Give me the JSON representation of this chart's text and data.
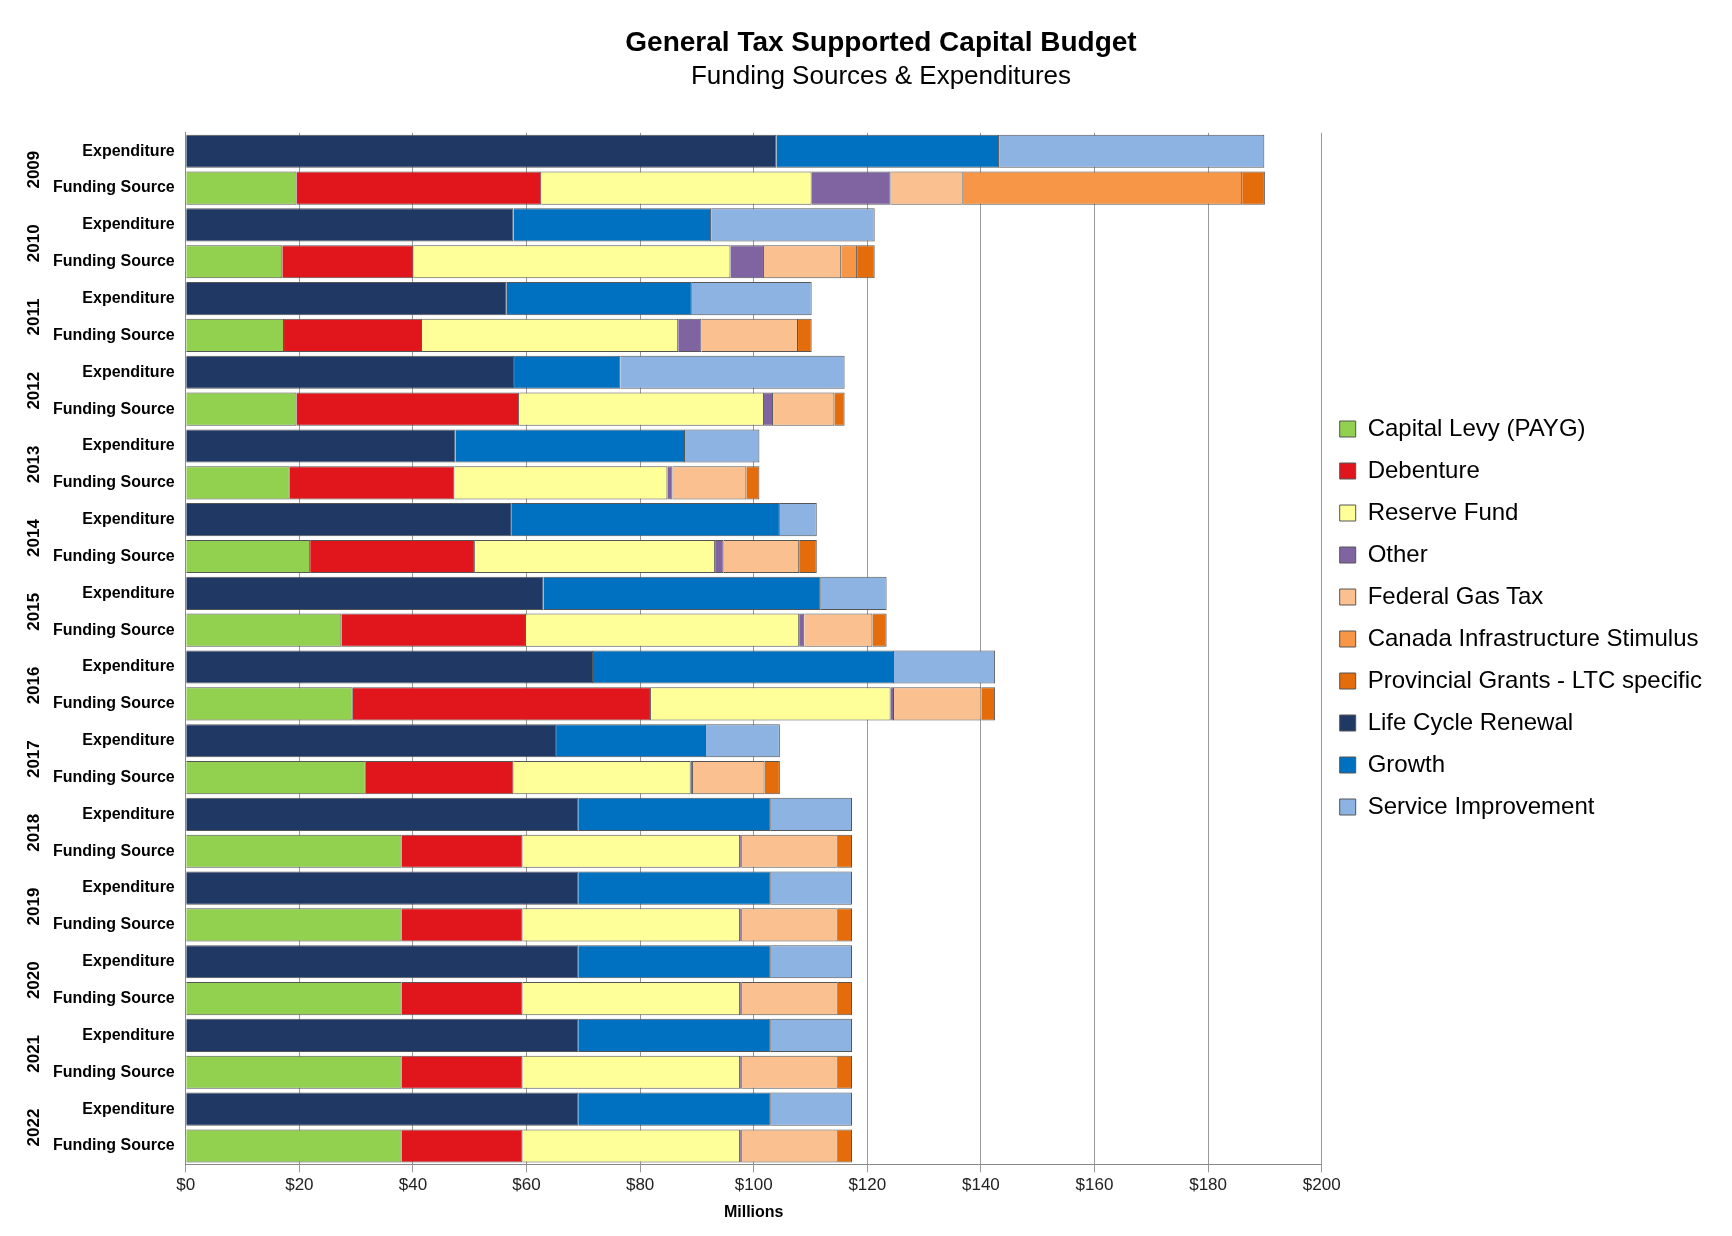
{
  "chart_data": {
    "type": "bar",
    "orientation": "horizontal",
    "stacked": true,
    "title": "General Tax Supported Capital Budget",
    "subtitle": "Funding Sources & Expenditures",
    "xlabel": "Millions",
    "categories": [
      "Expenditure",
      "Funding Source",
      "Expenditure",
      "Funding Source",
      "Expenditure",
      "Funding Source",
      "Expenditure",
      "Funding Source",
      "Expenditure",
      "Funding Source",
      "Expenditure",
      "Funding Source",
      "Expenditure",
      "Funding Source",
      "Expenditure",
      "Funding Source",
      "Expenditure",
      "Funding Source",
      "Expenditure",
      "Funding Source",
      "Expenditure",
      "Funding Source",
      "Expenditure",
      "Funding Source",
      "Expenditure",
      "Funding Source",
      "Expenditure",
      "Funding Source"
    ],
    "annotations": [
      "2009",
      "2010",
      "2011",
      "2012",
      "2013",
      "2014",
      "2015",
      "2016",
      "2017",
      "2018",
      "2019",
      "2020",
      "2021",
      "2022"
    ],
    "xlim": [
      0,
      200
    ],
    "xticks": [
      {
        "value": 0,
        "label": "$0"
      },
      {
        "value": 20,
        "label": "$20"
      },
      {
        "value": 40,
        "label": "$40"
      },
      {
        "value": 60,
        "label": "$60"
      },
      {
        "value": 80,
        "label": "$80"
      },
      {
        "value": 100,
        "label": "$100"
      },
      {
        "value": 120,
        "label": "$120"
      },
      {
        "value": 140,
        "label": "$140"
      },
      {
        "value": 160,
        "label": "$160"
      },
      {
        "value": 180,
        "label": "$180"
      },
      {
        "value": 200,
        "label": "$200"
      }
    ],
    "grid": "x",
    "legend": "right",
    "series": [
      {
        "name": "Capital Levy (PAYG)",
        "color": "#92d050",
        "values": [
          null,
          19.5,
          null,
          17,
          null,
          17.3,
          null,
          19.5,
          null,
          18.3,
          null,
          21.9,
          null,
          27.4,
          null,
          29.4,
          null,
          31.7,
          null,
          38,
          null,
          38,
          null,
          38,
          null,
          38,
          null,
          38
        ]
      },
      {
        "name": "Debenture",
        "color": "#e0161c",
        "values": [
          null,
          43.1,
          null,
          23.1,
          null,
          24.3,
          null,
          39.2,
          null,
          29,
          null,
          29,
          null,
          32.5,
          null,
          52.5,
          null,
          26,
          null,
          21.3,
          null,
          21.3,
          null,
          21.3,
          null,
          21.3,
          null,
          21.3
        ]
      },
      {
        "name": "Reserve Fund",
        "color": "#ffff99",
        "values": [
          null,
          47.6,
          null,
          55.8,
          null,
          45.1,
          null,
          43.1,
          null,
          37.5,
          null,
          42.3,
          null,
          48.1,
          null,
          42.2,
          null,
          31.2,
          null,
          38.3,
          null,
          38.3,
          null,
          38.3,
          null,
          38.3,
          null,
          38.3
        ]
      },
      {
        "name": "Other",
        "color": "#8064a2",
        "values": [
          null,
          13.9,
          null,
          5.9,
          null,
          4.1,
          null,
          1.6,
          null,
          0.9,
          null,
          1.5,
          null,
          0.9,
          null,
          0.6,
          null,
          0.4,
          null,
          0.3,
          null,
          0.3,
          null,
          0.3,
          null,
          0.3,
          null,
          0.3
        ]
      },
      {
        "name": "Federal Gas Tax",
        "color": "#fac090",
        "values": [
          null,
          12.7,
          null,
          13.6,
          null,
          17,
          null,
          10.8,
          null,
          13,
          null,
          13.3,
          null,
          12,
          null,
          15.4,
          null,
          12.6,
          null,
          16.9,
          null,
          16.9,
          null,
          16.9,
          null,
          16.9,
          null,
          16.9
        ]
      },
      {
        "name": "Canada Infrastructure Stimulus",
        "color": "#f79646",
        "values": [
          null,
          49.2,
          null,
          2.8,
          null,
          null,
          null,
          null,
          null,
          null,
          null,
          null,
          null,
          null,
          null,
          null,
          null,
          null,
          null,
          null,
          null,
          null,
          null,
          null,
          null,
          null,
          null,
          null
        ]
      },
      {
        "name": "Provincial Grants - LTC specific",
        "color": "#e46c0a",
        "values": [
          null,
          4,
          null,
          3.1,
          null,
          2.4,
          null,
          1.8,
          null,
          2.3,
          null,
          3.1,
          null,
          2.5,
          null,
          2.4,
          null,
          2.7,
          null,
          2.5,
          null,
          2.5,
          null,
          2.5,
          null,
          2.5,
          null,
          2.5
        ]
      },
      {
        "name": "Life Cycle Renewal",
        "color": "#1f3864",
        "values": [
          104,
          null,
          57.7,
          null,
          56.5,
          null,
          57.8,
          null,
          47.5,
          null,
          57.4,
          null,
          63,
          null,
          71.7,
          null,
          65.2,
          null,
          69.1,
          null,
          69.1,
          null,
          69.1,
          null,
          69.1,
          null,
          69.1,
          null
        ]
      },
      {
        "name": "Growth",
        "color": "#0070c0",
        "values": [
          39.2,
          null,
          34.8,
          null,
          32.6,
          null,
          18.7,
          null,
          40.4,
          null,
          47.2,
          null,
          48.8,
          null,
          53,
          null,
          26.4,
          null,
          33.9,
          null,
          33.9,
          null,
          33.9,
          null,
          33.9,
          null,
          33.9,
          null
        ]
      },
      {
        "name": "Service Improvement",
        "color": "#8db3e2",
        "values": [
          46.7,
          null,
          28.8,
          null,
          21.1,
          null,
          39.5,
          null,
          13.1,
          null,
          6.5,
          null,
          11.6,
          null,
          17.8,
          null,
          13,
          null,
          14.3,
          null,
          14.3,
          null,
          14.3,
          null,
          14.3,
          null,
          14.3,
          null
        ]
      }
    ]
  }
}
